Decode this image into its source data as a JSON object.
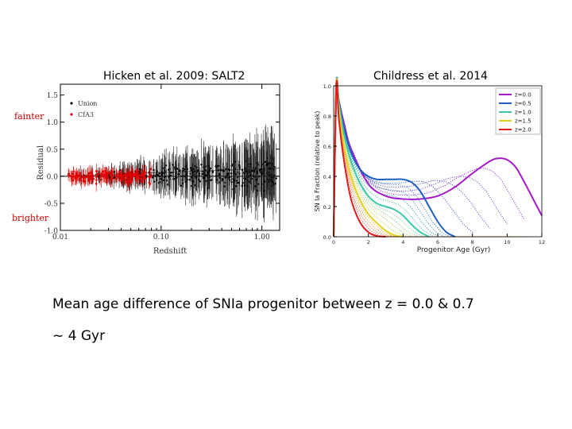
{
  "titles": {
    "left": "Hicken et al. 2009: SALT2",
    "right": "Childress et al. 2014"
  },
  "labels": {
    "fainter": "fainter",
    "brighter": "brighter"
  },
  "summary": {
    "line1": "Mean age difference of SNIa progenitor between z = 0.0 & 0.7",
    "line2": "~ 4 Gyr"
  },
  "chart_data": [
    {
      "type": "scatter",
      "title": "Hicken et al. 2009: SALT2",
      "xlabel": "Redshift",
      "ylabel": "Residual",
      "xscale": "log",
      "xlim": [
        0.01,
        1.5
      ],
      "ylim": [
        -1.0,
        1.7
      ],
      "xticks": [
        "0.01",
        "0.10",
        "1.00"
      ],
      "yticks": [
        "1.5",
        "1.0",
        "0.5",
        "0.0",
        "-0.5",
        "-1.0"
      ],
      "legend": {
        "entries": [
          "Union",
          "CfA3"
        ],
        "position": "top-left"
      },
      "series": [
        {
          "name": "Union",
          "color": "#000000",
          "z_range": [
            0.015,
            1.4
          ],
          "residual_spread_grows_with_z": true
        },
        {
          "name": "CfA3",
          "color": "#e00000",
          "z_range": [
            0.012,
            0.08
          ]
        }
      ],
      "reference_lines": [
        {
          "name": "zero",
          "y": 0.0
        },
        {
          "name": "trend",
          "points": [
            [
              0.01,
              0.0
            ],
            [
              1.5,
              0.15
            ]
          ]
        }
      ]
    },
    {
      "type": "line",
      "title": "Childress et al. 2014",
      "xlabel": "Progenitor Age (Gyr)",
      "ylabel": "SN Ia Fraction (relative to peak)",
      "xlim": [
        0,
        12
      ],
      "ylim": [
        0.0,
        1.0
      ],
      "xticks": [
        "0",
        "2",
        "4",
        "6",
        "8",
        "10",
        "12"
      ],
      "yticks": [
        "1.0",
        "0.8",
        "0.6",
        "0.4",
        "0.2",
        "0.0"
      ],
      "legend": {
        "position": "top-right",
        "entries": [
          "z=0.0",
          "z=0.5",
          "z=1.0",
          "z=1.5",
          "z=2.0"
        ]
      },
      "series": [
        {
          "name": "z=0.0",
          "color": "#a51ac9",
          "x": [
            0,
            0.15,
            0.3,
            0.6,
            1,
            2,
            3,
            4,
            5,
            6,
            7,
            8,
            9,
            9.5,
            10,
            10.5,
            11,
            11.5,
            12
          ],
          "y": [
            0,
            1.0,
            0.9,
            0.75,
            0.58,
            0.35,
            0.27,
            0.25,
            0.25,
            0.27,
            0.33,
            0.42,
            0.5,
            0.52,
            0.51,
            0.46,
            0.36,
            0.25,
            0.14
          ]
        },
        {
          "name": "z=0.5",
          "color": "#1f5fbf",
          "x": [
            0,
            0.15,
            0.3,
            0.6,
            1,
            1.5,
            2,
            2.5,
            3,
            3.5,
            4,
            4.5,
            5,
            5.5,
            6,
            6.5,
            7
          ],
          "y": [
            0,
            1.0,
            0.9,
            0.72,
            0.56,
            0.45,
            0.4,
            0.38,
            0.38,
            0.38,
            0.38,
            0.36,
            0.3,
            0.2,
            0.1,
            0.03,
            0.0
          ]
        },
        {
          "name": "z=1.0",
          "color": "#3cc8a8",
          "x": [
            0,
            0.15,
            0.3,
            0.6,
            1,
            1.5,
            2,
            2.5,
            3,
            3.5,
            4,
            4.5,
            5,
            5.5
          ],
          "y": [
            0,
            1.0,
            0.88,
            0.68,
            0.5,
            0.36,
            0.27,
            0.22,
            0.2,
            0.18,
            0.14,
            0.08,
            0.03,
            0.0
          ]
        },
        {
          "name": "z=1.5",
          "color": "#e3d21e",
          "x": [
            0,
            0.15,
            0.3,
            0.6,
            1,
            1.5,
            2,
            2.5,
            3,
            3.5,
            4
          ],
          "y": [
            0,
            1.0,
            0.85,
            0.6,
            0.4,
            0.25,
            0.15,
            0.09,
            0.04,
            0.01,
            0.0
          ]
        },
        {
          "name": "z=2.0",
          "color": "#e01b1b",
          "x": [
            0,
            0.15,
            0.3,
            0.6,
            1,
            1.5,
            2,
            2.5,
            3
          ],
          "y": [
            0,
            1.0,
            0.78,
            0.5,
            0.25,
            0.1,
            0.03,
            0.005,
            0.0
          ]
        }
      ]
    }
  ]
}
